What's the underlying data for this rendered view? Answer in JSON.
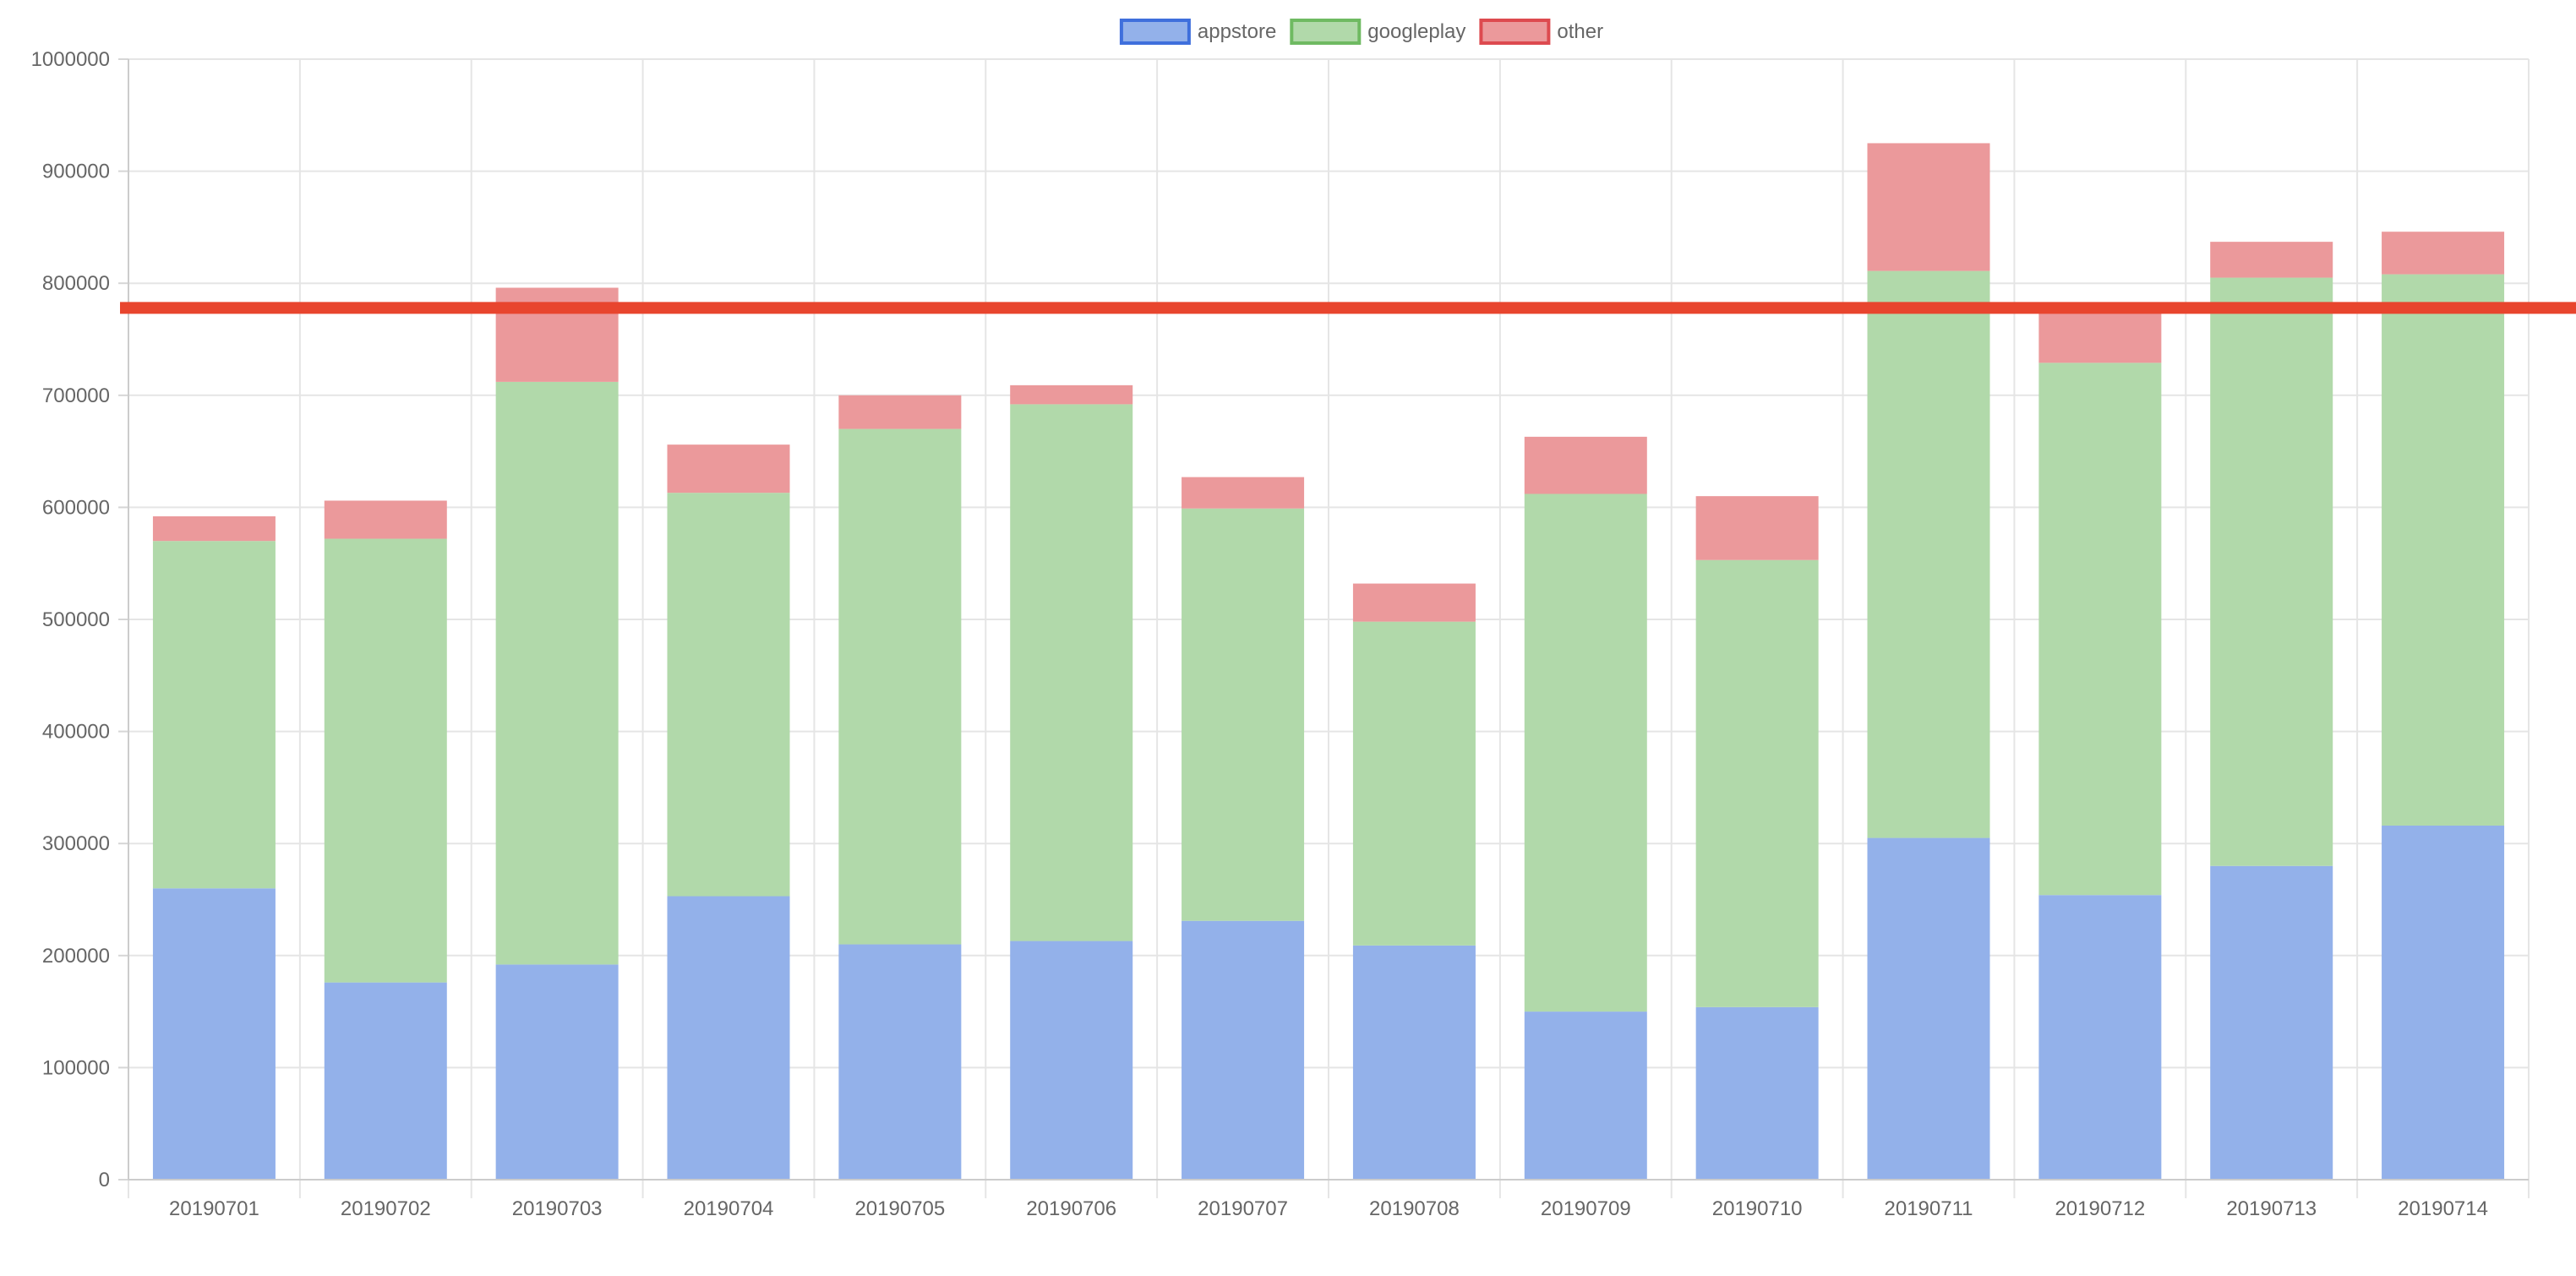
{
  "chart_data": {
    "type": "bar",
    "stacked": true,
    "categories": [
      "20190701",
      "20190702",
      "20190703",
      "20190704",
      "20190705",
      "20190706",
      "20190707",
      "20190708",
      "20190709",
      "20190710",
      "20190711",
      "20190712",
      "20190713",
      "20190714"
    ],
    "series": [
      {
        "name": "appstore",
        "values": [
          260000,
          176000,
          192000,
          253000,
          210000,
          213000,
          231000,
          209000,
          150000,
          154000,
          305000,
          254000,
          280000,
          316000
        ]
      },
      {
        "name": "googleplay",
        "values": [
          310000,
          396000,
          520000,
          360000,
          460000,
          479000,
          368000,
          289000,
          462000,
          399000,
          506000,
          475000,
          525000,
          492000
        ]
      },
      {
        "name": "other",
        "values": [
          22000,
          34000,
          84000,
          43000,
          30000,
          17000,
          28000,
          34000,
          51000,
          57000,
          114000,
          51000,
          32000,
          38000
        ]
      }
    ],
    "ylim": [
      0,
      1000000
    ],
    "yticks": [
      "0",
      "100000",
      "200000",
      "300000",
      "400000",
      "500000",
      "600000",
      "700000",
      "800000",
      "900000",
      "1000000"
    ],
    "grid": true,
    "legend_position": "top",
    "threshold_line": {
      "value": 778000,
      "color": "#e8452e"
    },
    "colors": {
      "appstore": {
        "fill": "#93b1ea",
        "stroke": "#3f6fdc"
      },
      "googleplay": {
        "fill": "#b1d9aa",
        "stroke": "#6fba62"
      },
      "other": {
        "fill": "#eb999b",
        "stroke": "#dd4a4f"
      }
    }
  }
}
